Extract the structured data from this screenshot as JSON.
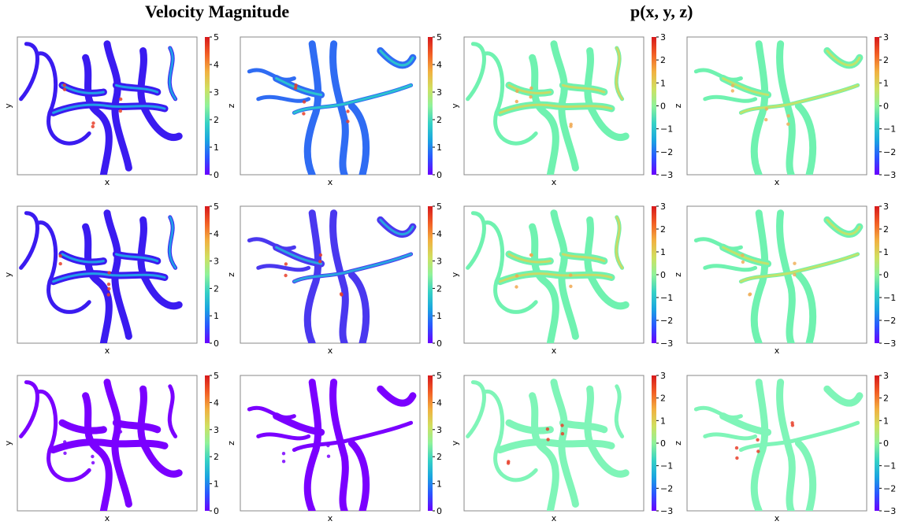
{
  "titles": {
    "velocity": "Velocity Magnitude",
    "pressure": "p(x, y, z)"
  },
  "colormap": [
    "#6a00ff",
    "#2a55ff",
    "#1aa5e0",
    "#36d2c4",
    "#8ff29a",
    "#cfe060",
    "#f2b040",
    "#f25f25",
    "#d7191c"
  ],
  "colorbars": {
    "velocity": {
      "min": 0,
      "max": 5,
      "ticks": [
        "0",
        "1",
        "2",
        "3",
        "4",
        "5"
      ]
    },
    "pressure": {
      "min": -3,
      "max": 3,
      "ticks": [
        "−3",
        "−2",
        "−1",
        "0",
        "1",
        "2",
        "3"
      ]
    }
  },
  "chart_data": [
    {
      "type": "heatmap",
      "row": 1,
      "col": 1,
      "field": "velocity",
      "xlabel": "x",
      "ylabel": "y",
      "clim": [
        0,
        5
      ],
      "base_color": "#3a1bf0",
      "highlight_color": "#1eb5e5",
      "hot_color": "#e8402a"
    },
    {
      "type": "heatmap",
      "row": 1,
      "col": 2,
      "field": "velocity",
      "xlabel": "x",
      "ylabel": "z",
      "clim": [
        0,
        5
      ],
      "base_color": "#2f6cf3",
      "highlight_color": "#2ad1c8",
      "hot_color": "#e8402a"
    },
    {
      "type": "heatmap",
      "row": 1,
      "col": 3,
      "field": "pressure",
      "xlabel": "x",
      "ylabel": "y",
      "clim": [
        -3,
        3
      ],
      "base_color": "#6ff2b0",
      "highlight_color": "#d8d65a",
      "hot_color": "#f0a850"
    },
    {
      "type": "heatmap",
      "row": 1,
      "col": 4,
      "field": "pressure",
      "xlabel": "x",
      "ylabel": "z",
      "clim": [
        -3,
        3
      ],
      "base_color": "#6ff2b0",
      "highlight_color": "#cfe060",
      "hot_color": "#eeb05a"
    },
    {
      "type": "heatmap",
      "row": 2,
      "col": 1,
      "field": "velocity",
      "xlabel": "x",
      "ylabel": "y",
      "clim": [
        0,
        5
      ],
      "base_color": "#3a1bf0",
      "highlight_color": "#1eb5e5",
      "hot_color": "#e8402a"
    },
    {
      "type": "heatmap",
      "row": 2,
      "col": 2,
      "field": "velocity",
      "xlabel": "x",
      "ylabel": "z",
      "clim": [
        0,
        5
      ],
      "base_color": "#4a38ef",
      "highlight_color": "#22b8dc",
      "hot_color": "#e8402a"
    },
    {
      "type": "heatmap",
      "row": 2,
      "col": 3,
      "field": "pressure",
      "xlabel": "x",
      "ylabel": "y",
      "clim": [
        -3,
        3
      ],
      "base_color": "#6ff2b0",
      "highlight_color": "#d8d65a",
      "hot_color": "#f0a850"
    },
    {
      "type": "heatmap",
      "row": 2,
      "col": 4,
      "field": "pressure",
      "xlabel": "x",
      "ylabel": "z",
      "clim": [
        -3,
        3
      ],
      "base_color": "#6ff2b0",
      "highlight_color": "#cfe060",
      "hot_color": "#eeb05a"
    },
    {
      "type": "heatmap",
      "row": 3,
      "col": 1,
      "field": "velocity",
      "xlabel": "x",
      "ylabel": "y",
      "clim": [
        0,
        5
      ],
      "base_color": "#7a00ff",
      "highlight_color": "#7a00ff",
      "hot_color": "#7a00ff"
    },
    {
      "type": "heatmap",
      "row": 3,
      "col": 2,
      "field": "velocity",
      "xlabel": "x",
      "ylabel": "z",
      "clim": [
        0,
        5
      ],
      "base_color": "#7a00ff",
      "highlight_color": "#7a00ff",
      "hot_color": "#7a00ff"
    },
    {
      "type": "heatmap",
      "row": 3,
      "col": 3,
      "field": "pressure",
      "xlabel": "x",
      "ylabel": "y",
      "clim": [
        -3,
        3
      ],
      "base_color": "#7ff5b8",
      "highlight_color": "#7ff5b8",
      "hot_color": "#e8402a"
    },
    {
      "type": "heatmap",
      "row": 3,
      "col": 4,
      "field": "pressure",
      "xlabel": "x",
      "ylabel": "z",
      "clim": [
        -3,
        3
      ],
      "base_color": "#7ff5b8",
      "highlight_color": "#7ff5b8",
      "hot_color": "#e8402a"
    }
  ]
}
